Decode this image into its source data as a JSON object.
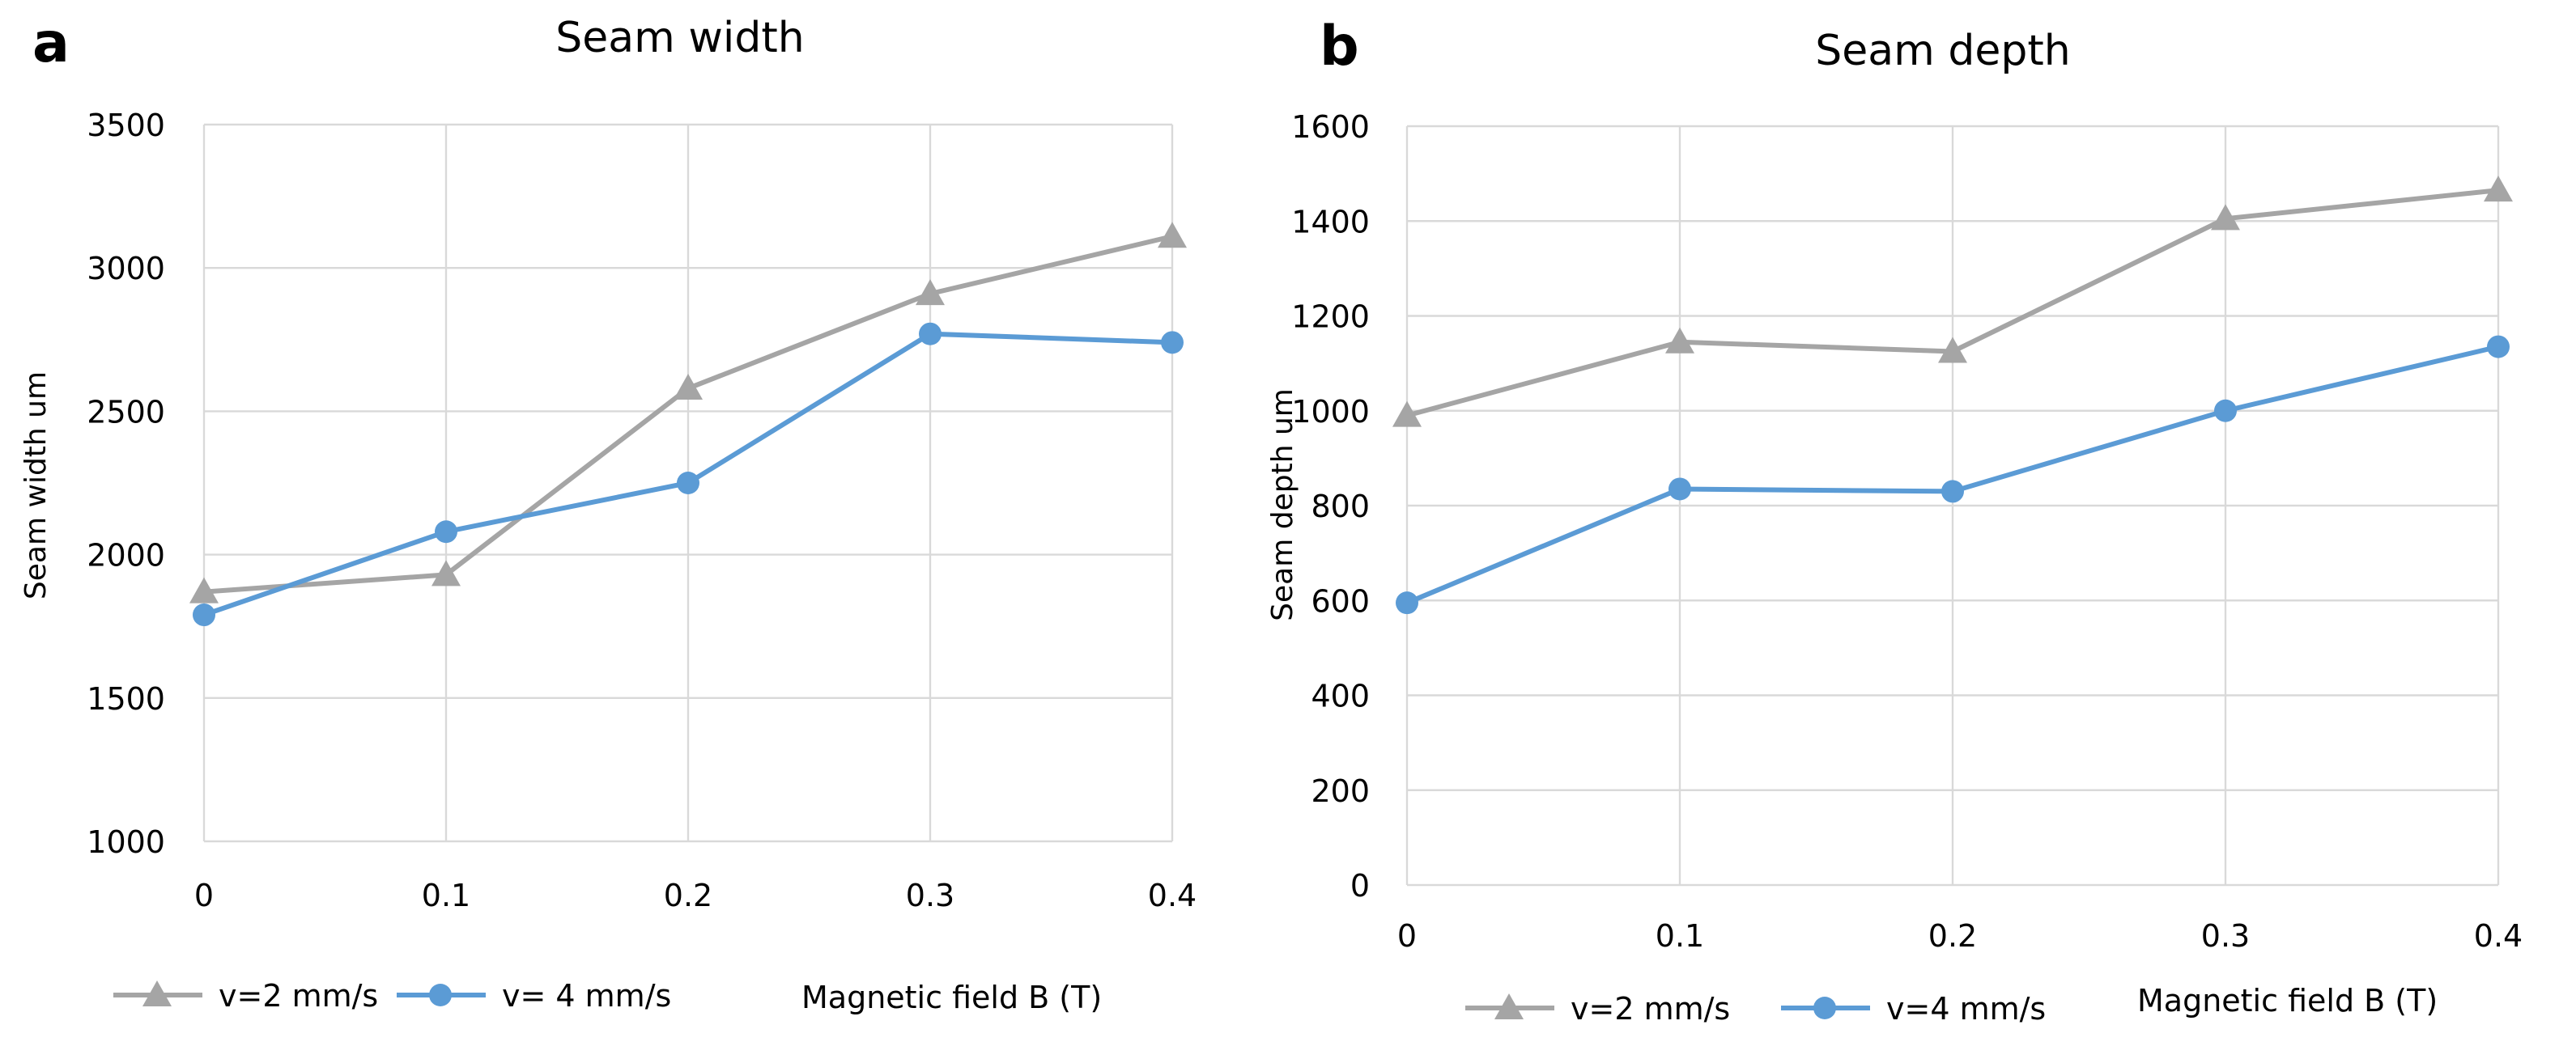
{
  "chart_data": [
    {
      "panel_label": "a",
      "type": "line",
      "title": "Seam width",
      "xlabel": "Magnetic field B (T)",
      "ylabel": "Seam width um",
      "x": [
        0,
        0.1,
        0.2,
        0.3,
        0.4
      ],
      "x_tick_labels": [
        "0",
        "0.1",
        "0.2",
        "0.3",
        "0.4"
      ],
      "ylim": [
        1000,
        3500
      ],
      "y_ticks": [
        1000,
        1500,
        2000,
        2500,
        3000,
        3500
      ],
      "grid": true,
      "legend_position": "bottom-left",
      "series": [
        {
          "name": "v=2 mm/s",
          "marker": "triangle",
          "color": "#A5A5A5",
          "values": [
            1870,
            1930,
            2580,
            2910,
            3110
          ]
        },
        {
          "name": "v= 4 mm/s",
          "marker": "circle",
          "color": "#5B9BD5",
          "values": [
            1790,
            2080,
            2250,
            2770,
            2740
          ]
        }
      ]
    },
    {
      "panel_label": "b",
      "type": "line",
      "title": "Seam depth",
      "xlabel": "Magnetic field B (T)",
      "ylabel": "Seam depth um",
      "x": [
        0,
        0.1,
        0.2,
        0.3,
        0.4
      ],
      "x_tick_labels": [
        "0",
        "0.1",
        "0.2",
        "0.3",
        "0.4"
      ],
      "ylim": [
        0,
        1600
      ],
      "y_ticks": [
        0,
        200,
        400,
        600,
        800,
        1000,
        1200,
        1400,
        1600
      ],
      "grid": true,
      "legend_position": "bottom-left",
      "series": [
        {
          "name": "v=2 mm/s",
          "marker": "triangle",
          "color": "#A5A5A5",
          "values": [
            990,
            1145,
            1125,
            1405,
            1465
          ]
        },
        {
          "name": "v=4 mm/s",
          "marker": "circle",
          "color": "#5B9BD5",
          "values": [
            595,
            835,
            830,
            1000,
            1135
          ]
        }
      ]
    }
  ]
}
